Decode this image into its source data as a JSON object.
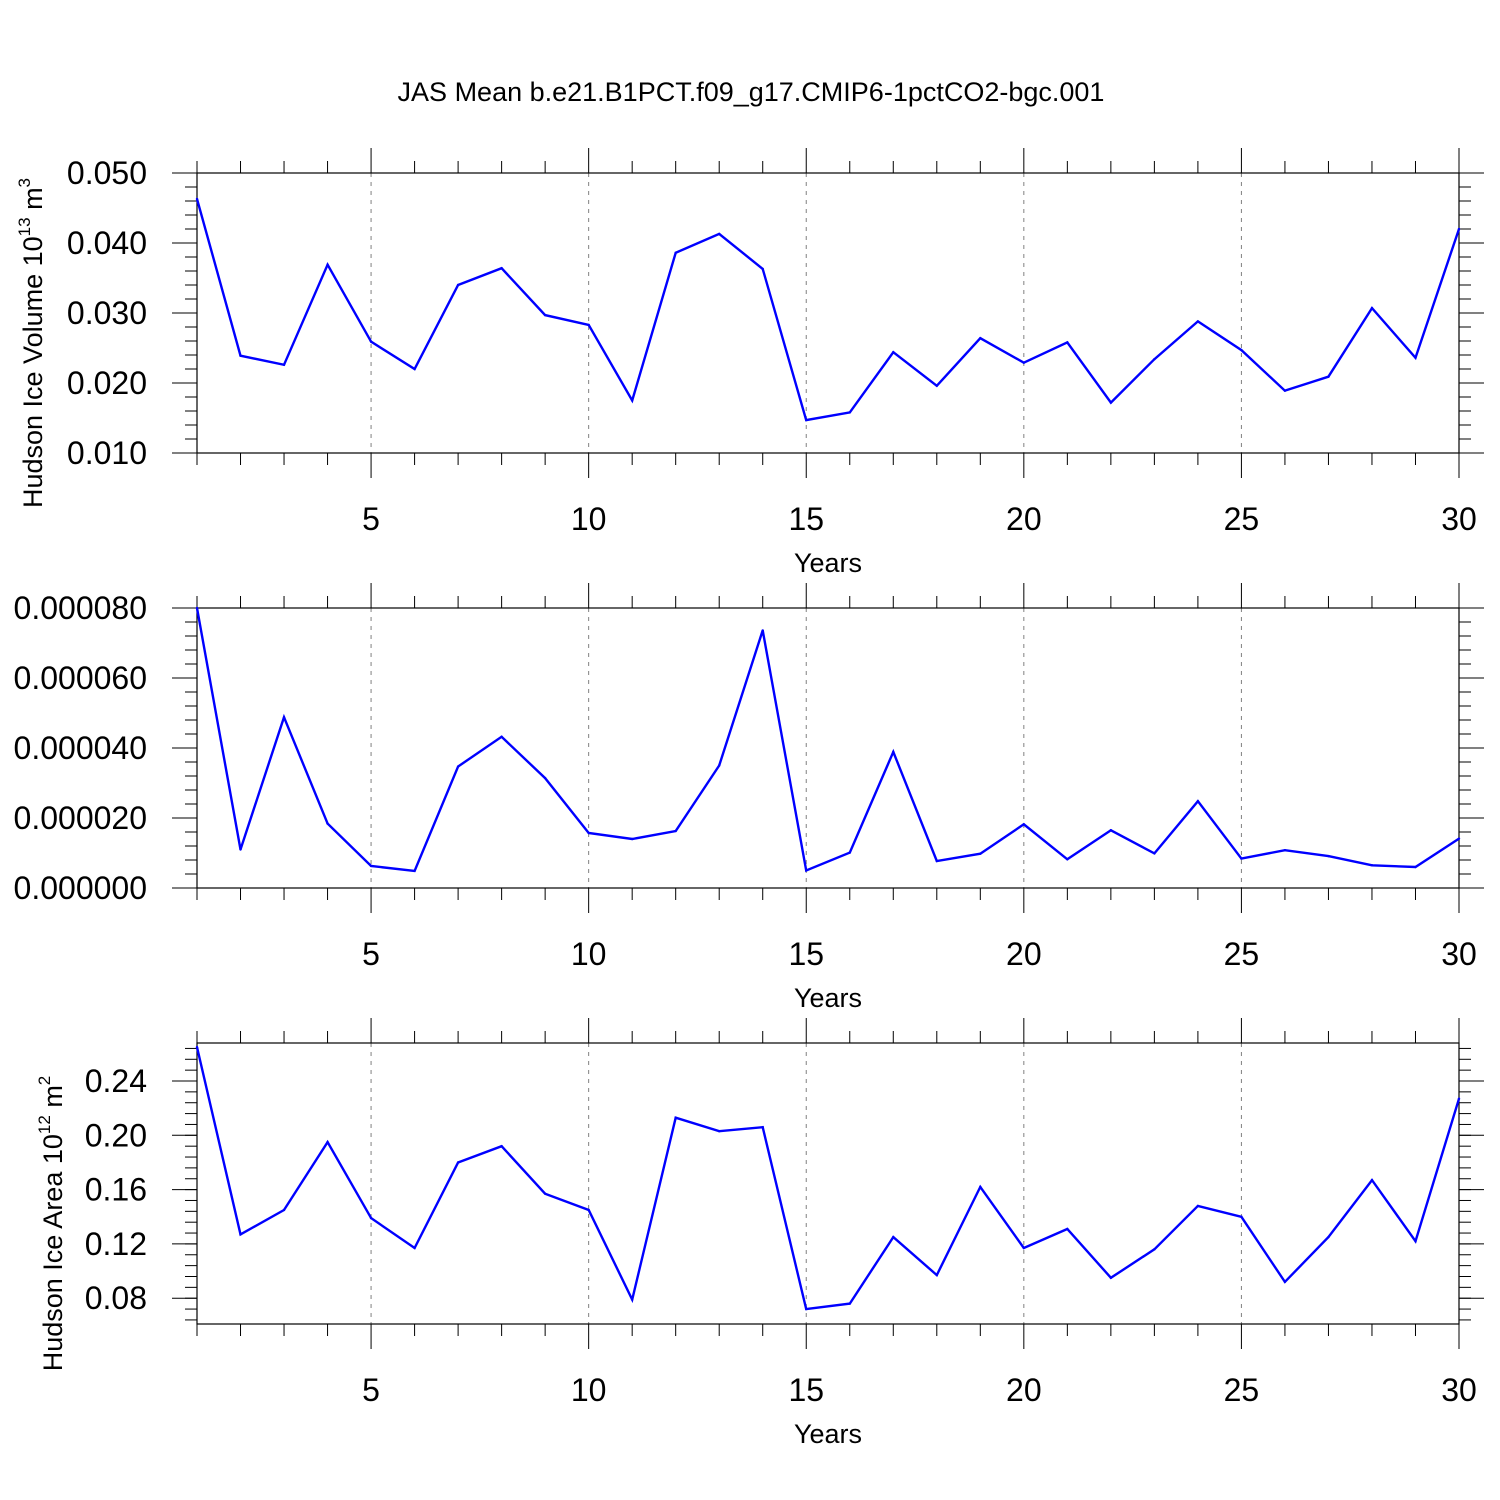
{
  "title": "JAS Mean b.e21.B1PCT.f09_g17.CMIP6-1pctCO2-bgc.001",
  "line_color": "#0000ff",
  "chart_data": [
    {
      "type": "line",
      "ylabel_main": "Hudson Ice Volume 10",
      "ylabel_sup1": "13",
      "ylabel_mid": " m",
      "ylabel_sup2": "3",
      "xlabel": "Years",
      "xlim": [
        1,
        30
      ],
      "ylim": [
        0.01,
        0.05
      ],
      "x_ticks": [
        5,
        10,
        15,
        20,
        25,
        30
      ],
      "x_tick_labels": [
        "5",
        "10",
        "15",
        "20",
        "25",
        "30"
      ],
      "y_ticks": [
        0.01,
        0.02,
        0.03,
        0.04,
        0.05
      ],
      "y_tick_labels": [
        "0.010",
        "0.020",
        "0.030",
        "0.040",
        "0.050"
      ],
      "y_minor_step": 0.002,
      "grid": "vertical dashed at major x ticks",
      "x": [
        1,
        2,
        3,
        4,
        5,
        6,
        7,
        8,
        9,
        10,
        11,
        12,
        13,
        14,
        15,
        16,
        17,
        18,
        19,
        20,
        21,
        22,
        23,
        24,
        25,
        26,
        27,
        28,
        29,
        30
      ],
      "values": [
        0.0463,
        0.0239,
        0.0226,
        0.0369,
        0.0259,
        0.022,
        0.034,
        0.0364,
        0.0297,
        0.0283,
        0.0175,
        0.0386,
        0.0413,
        0.0363,
        0.0147,
        0.0158,
        0.0244,
        0.0196,
        0.0264,
        0.0229,
        0.0258,
        0.0172,
        0.0234,
        0.0288,
        0.0247,
        0.0189,
        0.0209,
        0.0307,
        0.0236,
        0.042
      ]
    },
    {
      "type": "line",
      "ylabel_main": "",
      "xlabel": "Years",
      "xlim": [
        1,
        30
      ],
      "ylim": [
        0,
        8e-05
      ],
      "x_ticks": [
        5,
        10,
        15,
        20,
        25,
        30
      ],
      "x_tick_labels": [
        "5",
        "10",
        "15",
        "20",
        "25",
        "30"
      ],
      "y_ticks": [
        0,
        2e-05,
        4e-05,
        6e-05,
        8e-05
      ],
      "y_tick_labels": [
        "0.000000",
        "0.000020",
        "0.000040",
        "0.000060",
        "0.000080"
      ],
      "y_minor_step": 4e-06,
      "grid": "vertical dashed at major x ticks",
      "x": [
        1,
        2,
        3,
        4,
        5,
        6,
        7,
        8,
        9,
        10,
        11,
        12,
        13,
        14,
        15,
        16,
        17,
        18,
        19,
        20,
        21,
        22,
        23,
        24,
        25,
        26,
        27,
        28,
        29,
        30
      ],
      "values": [
        8e-05,
        1.1e-05,
        4.88e-05,
        1.84e-05,
        6.3e-06,
        4.9e-06,
        3.47e-05,
        4.32e-05,
        3.14e-05,
        1.57e-05,
        1.4e-05,
        1.63e-05,
        3.5e-05,
        7.36e-05,
        5e-06,
        1.01e-05,
        3.89e-05,
        7.7e-06,
        9.8e-06,
        1.82e-05,
        8.2e-06,
        1.65e-05,
        9.9e-06,
        2.48e-05,
        8.4e-06,
        1.08e-05,
        9.1e-06,
        6.5e-06,
        6e-06,
        1.41e-05
      ]
    },
    {
      "type": "line",
      "ylabel_main": "Hudson Ice Area 10",
      "ylabel_sup1": "12",
      "ylabel_mid": " m",
      "ylabel_sup2": "2",
      "xlabel": "Years",
      "xlim": [
        1,
        30
      ],
      "ylim": [
        0.061,
        0.268
      ],
      "x_ticks": [
        5,
        10,
        15,
        20,
        25,
        30
      ],
      "x_tick_labels": [
        "5",
        "10",
        "15",
        "20",
        "25",
        "30"
      ],
      "y_ticks": [
        0.08,
        0.12,
        0.16,
        0.2,
        0.24
      ],
      "y_tick_labels": [
        "0.08",
        "0.12",
        "0.16",
        "0.20",
        "0.24"
      ],
      "y_minor_step": 0.008,
      "grid": "vertical dashed at major x ticks",
      "x": [
        1,
        2,
        3,
        4,
        5,
        6,
        7,
        8,
        9,
        10,
        11,
        12,
        13,
        14,
        15,
        16,
        17,
        18,
        19,
        20,
        21,
        22,
        23,
        24,
        25,
        26,
        27,
        28,
        29,
        30
      ],
      "values": [
        0.265,
        0.127,
        0.145,
        0.195,
        0.139,
        0.117,
        0.18,
        0.192,
        0.157,
        0.145,
        0.079,
        0.213,
        0.203,
        0.206,
        0.072,
        0.076,
        0.125,
        0.097,
        0.162,
        0.117,
        0.131,
        0.095,
        0.116,
        0.148,
        0.14,
        0.092,
        0.125,
        0.167,
        0.122,
        0.227
      ]
    }
  ]
}
